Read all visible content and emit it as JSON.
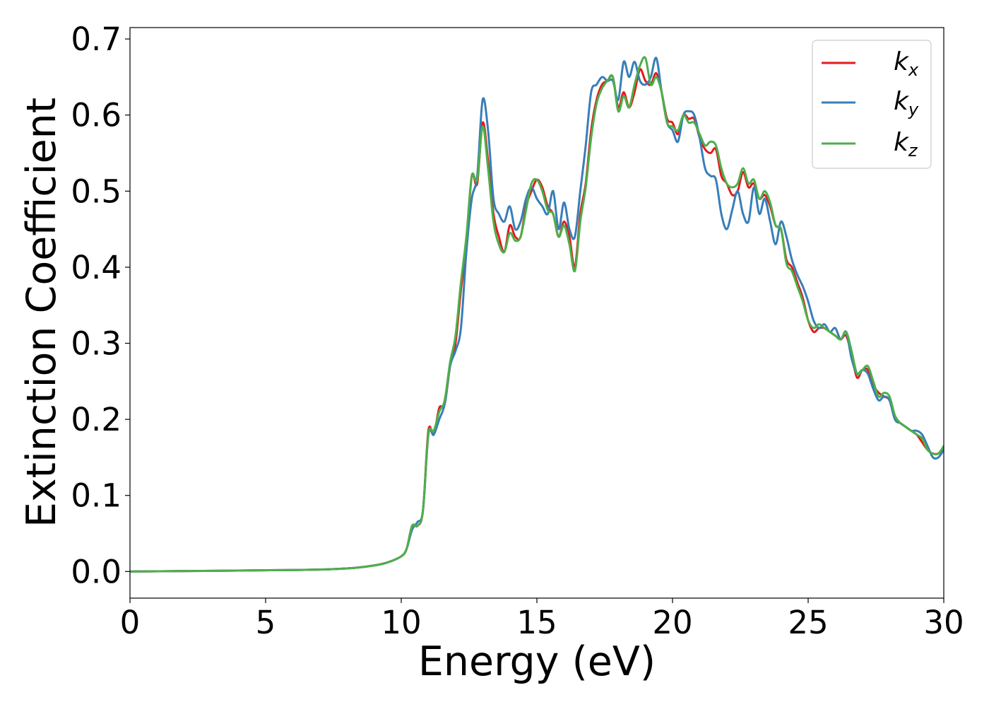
{
  "chart_data": {
    "type": "line",
    "title": "",
    "xlabel": "Energy (eV)",
    "ylabel": "Extinction Coefficient",
    "xlim": [
      0,
      30
    ],
    "ylim": [
      -0.035,
      0.715
    ],
    "xticks": [
      0,
      5,
      10,
      15,
      20,
      25,
      30
    ],
    "xtick_labels": [
      "0",
      "5",
      "10",
      "15",
      "20",
      "25",
      "30"
    ],
    "yticks": [
      0.0,
      0.1,
      0.2,
      0.3,
      0.4,
      0.5,
      0.6,
      0.7
    ],
    "ytick_labels": [
      "0.0",
      "0.1",
      "0.2",
      "0.3",
      "0.4",
      "0.5",
      "0.6",
      "0.7"
    ],
    "grid": false,
    "legend_position": "top-right",
    "series": [
      {
        "name": "k",
        "subscript": "x",
        "color": "#e41a1c",
        "x": [
          0,
          6,
          8,
          9,
          9.5,
          10,
          10.2,
          10.4,
          10.6,
          10.8,
          11.0,
          11.2,
          11.4,
          11.6,
          11.8,
          12.0,
          12.2,
          12.4,
          12.6,
          12.8,
          13.0,
          13.2,
          13.4,
          13.6,
          13.8,
          14.0,
          14.2,
          14.4,
          14.6,
          14.8,
          15.0,
          15.2,
          15.4,
          15.6,
          15.8,
          16.0,
          16.2,
          16.4,
          16.6,
          16.8,
          17.0,
          17.2,
          17.4,
          17.6,
          17.8,
          18.0,
          18.2,
          18.4,
          18.6,
          18.8,
          19.0,
          19.2,
          19.4,
          19.6,
          19.8,
          20.0,
          20.2,
          20.4,
          20.6,
          20.8,
          21.0,
          21.2,
          21.4,
          21.6,
          21.8,
          22.0,
          22.2,
          22.4,
          22.6,
          22.8,
          23.0,
          23.2,
          23.4,
          23.6,
          23.8,
          24.0,
          24.2,
          24.4,
          24.6,
          24.8,
          25.0,
          25.2,
          25.4,
          25.6,
          25.8,
          26.0,
          26.2,
          26.4,
          26.6,
          26.8,
          27.0,
          27.2,
          27.4,
          27.6,
          27.8,
          28.0,
          28.2,
          28.4,
          28.6,
          28.8,
          29.0,
          29.2,
          29.4,
          29.6,
          29.8,
          30.0
        ],
        "y": [
          0.0,
          0.002,
          0.004,
          0.008,
          0.012,
          0.02,
          0.03,
          0.06,
          0.06,
          0.08,
          0.185,
          0.18,
          0.215,
          0.22,
          0.27,
          0.3,
          0.37,
          0.43,
          0.52,
          0.51,
          0.59,
          0.54,
          0.47,
          0.44,
          0.42,
          0.455,
          0.44,
          0.44,
          0.48,
          0.5,
          0.515,
          0.505,
          0.48,
          0.47,
          0.44,
          0.46,
          0.44,
          0.4,
          0.47,
          0.51,
          0.58,
          0.62,
          0.64,
          0.645,
          0.65,
          0.61,
          0.63,
          0.61,
          0.63,
          0.66,
          0.645,
          0.64,
          0.655,
          0.63,
          0.595,
          0.59,
          0.575,
          0.6,
          0.595,
          0.595,
          0.57,
          0.555,
          0.55,
          0.555,
          0.52,
          0.51,
          0.495,
          0.5,
          0.525,
          0.505,
          0.51,
          0.49,
          0.495,
          0.48,
          0.455,
          0.45,
          0.41,
          0.4,
          0.38,
          0.36,
          0.33,
          0.315,
          0.32,
          0.32,
          0.315,
          0.31,
          0.305,
          0.31,
          0.285,
          0.255,
          0.265,
          0.265,
          0.245,
          0.235,
          0.23,
          0.225,
          0.2,
          0.195,
          0.19,
          0.185,
          0.18,
          0.17,
          0.16,
          0.155,
          0.155,
          0.16
        ]
      },
      {
        "name": "k",
        "subscript": "y",
        "color": "#377eb8",
        "x": [
          0,
          6,
          8,
          9,
          9.5,
          10,
          10.2,
          10.4,
          10.6,
          10.8,
          11.0,
          11.2,
          11.4,
          11.6,
          11.8,
          12.0,
          12.2,
          12.4,
          12.6,
          12.8,
          13.0,
          13.2,
          13.4,
          13.6,
          13.8,
          14.0,
          14.2,
          14.4,
          14.6,
          14.8,
          15.0,
          15.2,
          15.4,
          15.6,
          15.8,
          16.0,
          16.2,
          16.4,
          16.6,
          16.8,
          17.0,
          17.2,
          17.4,
          17.6,
          17.8,
          18.0,
          18.2,
          18.4,
          18.6,
          18.8,
          19.0,
          19.2,
          19.4,
          19.6,
          19.8,
          20.0,
          20.2,
          20.4,
          20.6,
          20.8,
          21.0,
          21.2,
          21.4,
          21.6,
          21.8,
          22.0,
          22.2,
          22.4,
          22.6,
          22.8,
          23.0,
          23.2,
          23.4,
          23.6,
          23.8,
          24.0,
          24.2,
          24.4,
          24.6,
          24.8,
          25.0,
          25.2,
          25.4,
          25.6,
          25.8,
          26.0,
          26.2,
          26.4,
          26.6,
          26.8,
          27.0,
          27.2,
          27.4,
          27.6,
          27.8,
          28.0,
          28.2,
          28.4,
          28.6,
          28.8,
          29.0,
          29.2,
          29.4,
          29.6,
          29.8,
          30.0
        ],
        "y": [
          0.0,
          0.002,
          0.004,
          0.008,
          0.012,
          0.02,
          0.03,
          0.055,
          0.065,
          0.08,
          0.18,
          0.18,
          0.2,
          0.22,
          0.27,
          0.29,
          0.32,
          0.42,
          0.49,
          0.52,
          0.62,
          0.58,
          0.49,
          0.47,
          0.46,
          0.48,
          0.45,
          0.46,
          0.49,
          0.505,
          0.49,
          0.48,
          0.47,
          0.5,
          0.45,
          0.485,
          0.45,
          0.44,
          0.5,
          0.56,
          0.63,
          0.64,
          0.65,
          0.645,
          0.645,
          0.62,
          0.67,
          0.65,
          0.67,
          0.645,
          0.64,
          0.65,
          0.675,
          0.63,
          0.59,
          0.58,
          0.565,
          0.6,
          0.605,
          0.6,
          0.57,
          0.53,
          0.52,
          0.515,
          0.47,
          0.45,
          0.475,
          0.5,
          0.47,
          0.46,
          0.505,
          0.47,
          0.49,
          0.46,
          0.43,
          0.46,
          0.44,
          0.41,
          0.39,
          0.375,
          0.355,
          0.33,
          0.32,
          0.325,
          0.315,
          0.32,
          0.305,
          0.315,
          0.28,
          0.26,
          0.265,
          0.26,
          0.24,
          0.225,
          0.23,
          0.225,
          0.2,
          0.195,
          0.19,
          0.185,
          0.185,
          0.18,
          0.165,
          0.15,
          0.15,
          0.16
        ]
      },
      {
        "name": "k",
        "subscript": "z",
        "color": "#4daf4a",
        "x": [
          0,
          6,
          8,
          9,
          9.5,
          10,
          10.2,
          10.4,
          10.6,
          10.8,
          11.0,
          11.2,
          11.4,
          11.6,
          11.8,
          12.0,
          12.2,
          12.4,
          12.6,
          12.8,
          13.0,
          13.2,
          13.4,
          13.6,
          13.8,
          14.0,
          14.2,
          14.4,
          14.6,
          14.8,
          15.0,
          15.2,
          15.4,
          15.6,
          15.8,
          16.0,
          16.2,
          16.4,
          16.6,
          16.8,
          17.0,
          17.2,
          17.4,
          17.6,
          17.8,
          18.0,
          18.2,
          18.4,
          18.6,
          18.8,
          19.0,
          19.2,
          19.4,
          19.6,
          19.8,
          20.0,
          20.2,
          20.4,
          20.6,
          20.8,
          21.0,
          21.2,
          21.4,
          21.6,
          21.8,
          22.0,
          22.2,
          22.4,
          22.6,
          22.8,
          23.0,
          23.2,
          23.4,
          23.6,
          23.8,
          24.0,
          24.2,
          24.4,
          24.6,
          24.8,
          25.0,
          25.2,
          25.4,
          25.6,
          25.8,
          26.0,
          26.2,
          26.4,
          26.6,
          26.8,
          27.0,
          27.2,
          27.4,
          27.6,
          27.8,
          28.0,
          28.2,
          28.4,
          28.6,
          28.8,
          29.0,
          29.2,
          29.4,
          29.6,
          29.8,
          30.0
        ],
        "y": [
          0.0,
          0.002,
          0.004,
          0.008,
          0.012,
          0.02,
          0.03,
          0.06,
          0.06,
          0.08,
          0.18,
          0.185,
          0.21,
          0.225,
          0.275,
          0.31,
          0.38,
          0.44,
          0.52,
          0.515,
          0.585,
          0.53,
          0.46,
          0.43,
          0.42,
          0.445,
          0.435,
          0.44,
          0.475,
          0.51,
          0.515,
          0.5,
          0.475,
          0.47,
          0.44,
          0.455,
          0.43,
          0.395,
          0.46,
          0.505,
          0.57,
          0.615,
          0.635,
          0.645,
          0.65,
          0.605,
          0.625,
          0.61,
          0.64,
          0.665,
          0.675,
          0.64,
          0.65,
          0.63,
          0.59,
          0.585,
          0.58,
          0.6,
          0.59,
          0.59,
          0.575,
          0.56,
          0.565,
          0.56,
          0.53,
          0.51,
          0.505,
          0.51,
          0.53,
          0.51,
          0.515,
          0.49,
          0.5,
          0.485,
          0.455,
          0.45,
          0.405,
          0.395,
          0.375,
          0.355,
          0.33,
          0.32,
          0.325,
          0.32,
          0.315,
          0.31,
          0.305,
          0.315,
          0.29,
          0.26,
          0.265,
          0.27,
          0.25,
          0.23,
          0.235,
          0.23,
          0.205,
          0.195,
          0.19,
          0.185,
          0.18,
          0.175,
          0.16,
          0.155,
          0.155,
          0.165
        ]
      }
    ]
  }
}
